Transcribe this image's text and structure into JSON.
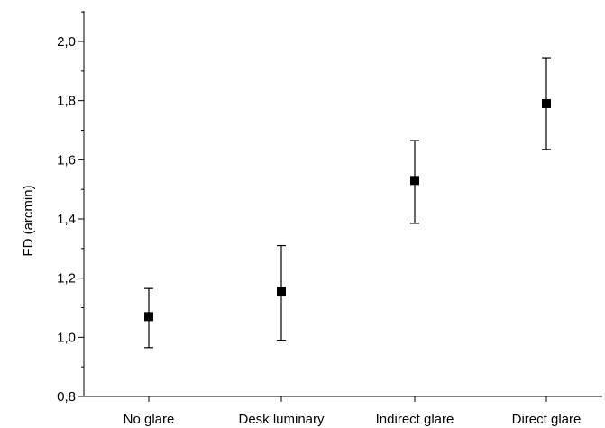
{
  "chart_data": {
    "type": "scatter",
    "title": "",
    "xlabel": "",
    "ylabel": "FD (arcmin)",
    "categories": [
      "No glare",
      "Desk luminary",
      "Indirect glare",
      "Direct glare"
    ],
    "values": [
      1.07,
      1.155,
      1.53,
      1.79
    ],
    "err_low": [
      0.965,
      0.99,
      1.385,
      1.635
    ],
    "err_high": [
      1.165,
      1.31,
      1.665,
      1.945
    ],
    "ylim": [
      0.8,
      2.1
    ],
    "yticks": [
      "0,8",
      "1,0",
      "1,2",
      "1,4",
      "1,6",
      "1,8",
      "2,0"
    ],
    "grid": false,
    "legend": "none",
    "color": "#000000"
  }
}
